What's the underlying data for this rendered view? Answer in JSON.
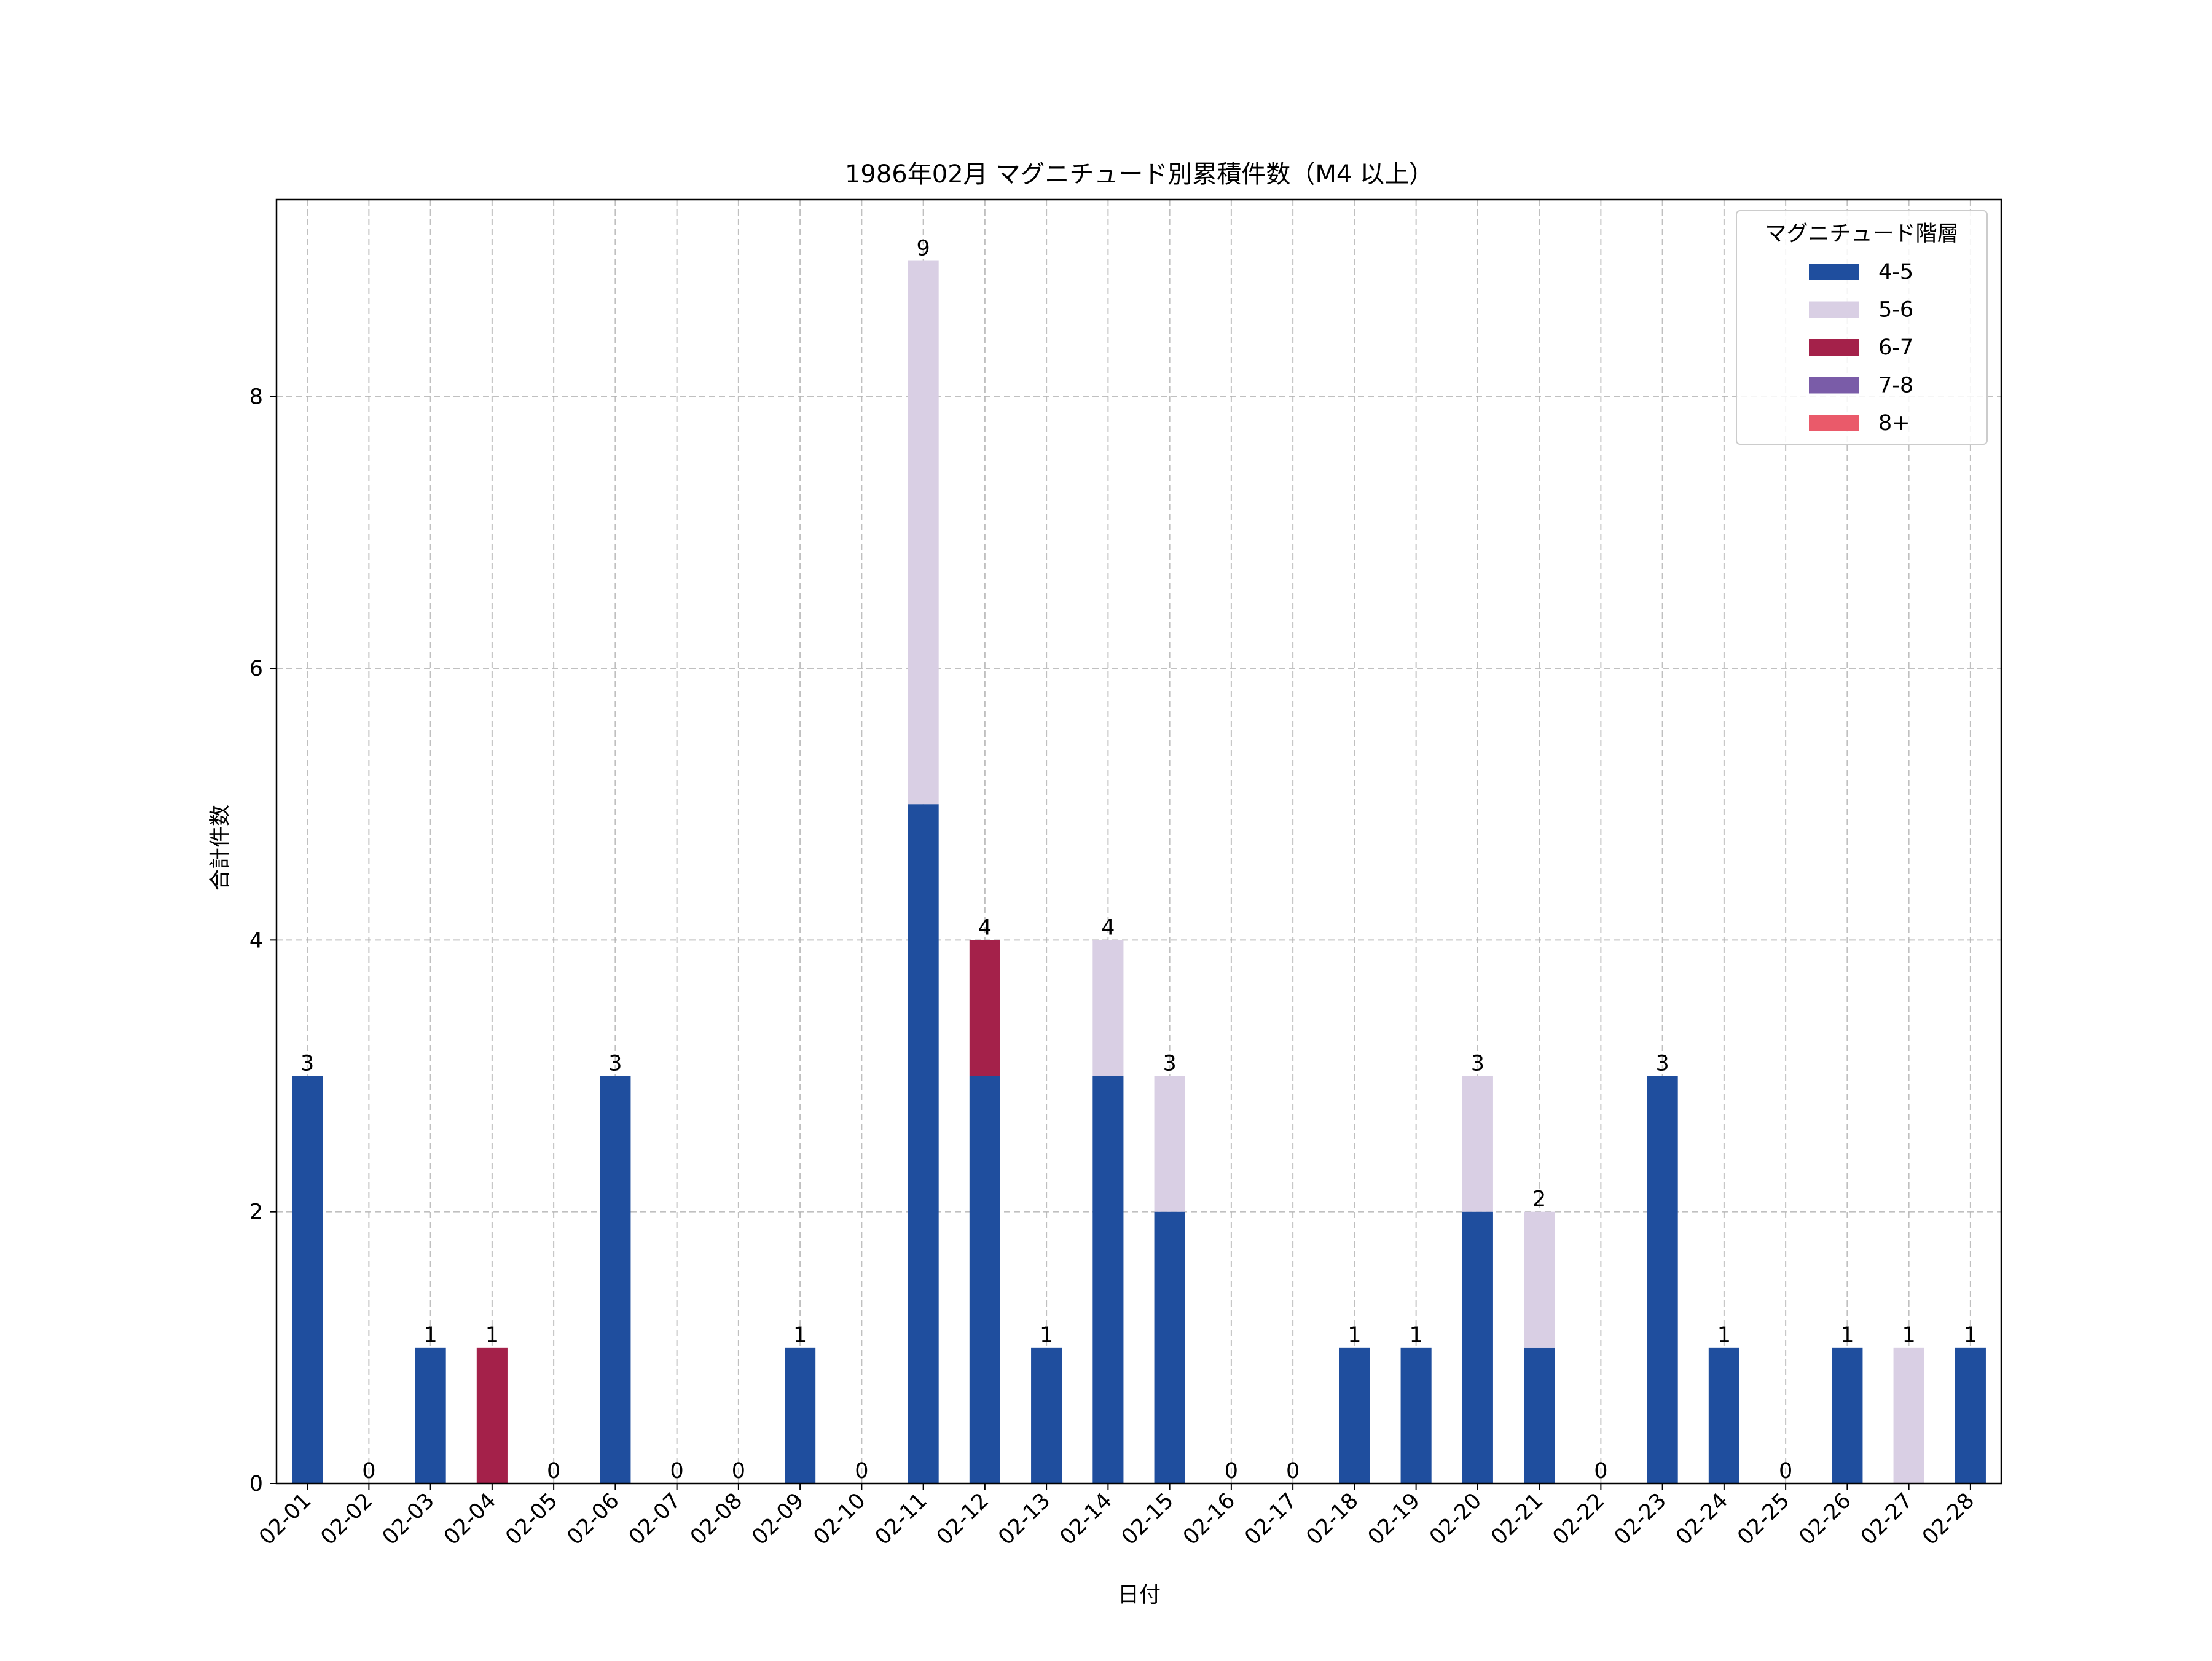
{
  "chart_data": {
    "type": "bar",
    "stacked": true,
    "title": "1986年02月 マグニチュード別累積件数（M4 以上）",
    "xlabel": "日付",
    "ylabel": "合計件数",
    "ylim": [
      0,
      9.45
    ],
    "yticks": [
      0,
      2,
      4,
      6,
      8
    ],
    "grid": true,
    "legend": {
      "title": "マグニチュード階層",
      "placement": "top-right"
    },
    "categories": [
      "02-01",
      "02-02",
      "02-03",
      "02-04",
      "02-05",
      "02-06",
      "02-07",
      "02-08",
      "02-09",
      "02-10",
      "02-11",
      "02-12",
      "02-13",
      "02-14",
      "02-15",
      "02-16",
      "02-17",
      "02-18",
      "02-19",
      "02-20",
      "02-21",
      "02-22",
      "02-23",
      "02-24",
      "02-25",
      "02-26",
      "02-27",
      "02-28"
    ],
    "series": [
      {
        "name": "4-5",
        "color": "#1f4e9e",
        "values": [
          3,
          0,
          1,
          0,
          0,
          3,
          0,
          0,
          1,
          0,
          5,
          3,
          1,
          3,
          2,
          0,
          0,
          1,
          1,
          2,
          1,
          0,
          3,
          1,
          0,
          1,
          0,
          1
        ]
      },
      {
        "name": "5-6",
        "color": "#d9cfe4",
        "values": [
          0,
          0,
          0,
          0,
          0,
          0,
          0,
          0,
          0,
          0,
          4,
          0,
          0,
          1,
          1,
          0,
          0,
          0,
          0,
          1,
          1,
          0,
          0,
          0,
          0,
          0,
          1,
          0
        ]
      },
      {
        "name": "6-7",
        "color": "#a4214a",
        "values": [
          0,
          0,
          0,
          1,
          0,
          0,
          0,
          0,
          0,
          0,
          0,
          1,
          0,
          0,
          0,
          0,
          0,
          0,
          0,
          0,
          0,
          0,
          0,
          0,
          0,
          0,
          0,
          0
        ]
      },
      {
        "name": "7-8",
        "color": "#7a5ca8",
        "values": [
          0,
          0,
          0,
          0,
          0,
          0,
          0,
          0,
          0,
          0,
          0,
          0,
          0,
          0,
          0,
          0,
          0,
          0,
          0,
          0,
          0,
          0,
          0,
          0,
          0,
          0,
          0,
          0
        ]
      },
      {
        "name": "8+",
        "color": "#ea5a6a",
        "values": [
          0,
          0,
          0,
          0,
          0,
          0,
          0,
          0,
          0,
          0,
          0,
          0,
          0,
          0,
          0,
          0,
          0,
          0,
          0,
          0,
          0,
          0,
          0,
          0,
          0,
          0,
          0,
          0
        ]
      }
    ],
    "totals": [
      3,
      0,
      1,
      1,
      0,
      3,
      0,
      0,
      1,
      0,
      9,
      4,
      1,
      4,
      3,
      0,
      0,
      1,
      1,
      3,
      2,
      0,
      3,
      1,
      0,
      1,
      1,
      1
    ]
  }
}
